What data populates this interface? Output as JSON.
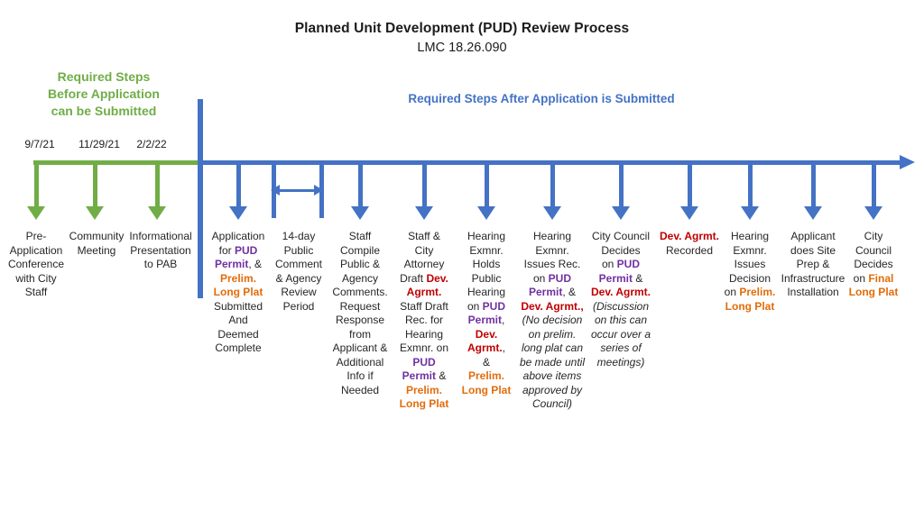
{
  "title": {
    "heading": "Planned Unit Development (PUD) Review Process",
    "code": "LMC 18.26.090"
  },
  "colors": {
    "green": "#70AD47",
    "blue": "#4472C4",
    "purple": "#7030A0",
    "red": "#C00000",
    "orange": "#E36C0A",
    "text": "#262626"
  },
  "before_section": {
    "heading_lines": [
      "Required Steps",
      "Before Application",
      "can be Submitted"
    ],
    "steps": [
      {
        "date": "9/7/21",
        "lines": [
          [
            {
              "t": "Pre-"
            }
          ],
          [
            {
              "t": "Application"
            }
          ],
          [
            {
              "t": "Conference"
            }
          ],
          [
            {
              "t": "with City"
            }
          ],
          [
            {
              "t": "Staff"
            }
          ]
        ]
      },
      {
        "date": "11/29/21",
        "lines": [
          [
            {
              "t": "Community"
            }
          ],
          [
            {
              "t": "Meeting"
            }
          ]
        ]
      },
      {
        "date": "2/2/22",
        "lines": [
          [
            {
              "t": "Informational"
            }
          ],
          [
            {
              "t": "Presentation"
            }
          ],
          [
            {
              "t": "to PAB"
            }
          ]
        ]
      }
    ]
  },
  "after_section": {
    "heading": "Required Steps After Application is Submitted",
    "steps": [
      {
        "lines": [
          [
            {
              "t": "Application"
            }
          ],
          [
            {
              "t": "for "
            },
            {
              "t": "PUD",
              "c": "purple"
            }
          ],
          [
            {
              "t": "Permit",
              "c": "purple"
            },
            {
              "t": ", &"
            }
          ],
          [
            {
              "t": "Prelim.",
              "c": "orange"
            }
          ],
          [
            {
              "t": "Long Plat",
              "c": "orange"
            }
          ],
          [
            {
              "t": "Submitted"
            }
          ],
          [
            {
              "t": "And"
            }
          ],
          [
            {
              "t": "Deemed"
            }
          ],
          [
            {
              "t": "Complete"
            }
          ]
        ]
      },
      {
        "marker": "range",
        "lines": [
          [
            {
              "t": "14-day"
            }
          ],
          [
            {
              "t": "Public"
            }
          ],
          [
            {
              "t": "Comment"
            }
          ],
          [
            {
              "t": "& Agency"
            }
          ],
          [
            {
              "t": "Review"
            }
          ],
          [
            {
              "t": "Period"
            }
          ]
        ]
      },
      {
        "lines": [
          [
            {
              "t": "Staff"
            }
          ],
          [
            {
              "t": "Compile"
            }
          ],
          [
            {
              "t": "Public &"
            }
          ],
          [
            {
              "t": "Agency"
            }
          ],
          [
            {
              "t": "Comments."
            }
          ],
          [
            {
              "t": "Request"
            }
          ],
          [
            {
              "t": "Response"
            }
          ],
          [
            {
              "t": "from"
            }
          ],
          [
            {
              "t": "Applicant &"
            }
          ],
          [
            {
              "t": "Additional"
            }
          ],
          [
            {
              "t": "Info if"
            }
          ],
          [
            {
              "t": "Needed"
            }
          ]
        ]
      },
      {
        "lines": [
          [
            {
              "t": "Staff &"
            }
          ],
          [
            {
              "t": "City"
            }
          ],
          [
            {
              "t": "Attorney"
            }
          ],
          [
            {
              "t": "Draft "
            },
            {
              "t": "Dev.",
              "c": "red"
            }
          ],
          [
            {
              "t": "Agrmt.",
              "c": "red"
            }
          ],
          [
            {
              "t": "Staff Draft"
            }
          ],
          [
            {
              "t": "Rec. for"
            }
          ],
          [
            {
              "t": "Hearing"
            }
          ],
          [
            {
              "t": "Exmnr. on"
            }
          ],
          [
            {
              "t": "PUD",
              "c": "purple"
            }
          ],
          [
            {
              "t": "Permit",
              "c": "purple"
            },
            {
              "t": " &"
            }
          ],
          [
            {
              "t": "Prelim.",
              "c": "orange"
            }
          ],
          [
            {
              "t": "Long Plat",
              "c": "orange"
            }
          ]
        ]
      },
      {
        "lines": [
          [
            {
              "t": "Hearing"
            }
          ],
          [
            {
              "t": "Exmnr."
            }
          ],
          [
            {
              "t": "Holds"
            }
          ],
          [
            {
              "t": "Public"
            }
          ],
          [
            {
              "t": "Hearing"
            }
          ],
          [
            {
              "t": "on "
            },
            {
              "t": "PUD",
              "c": "purple"
            }
          ],
          [
            {
              "t": "Permit",
              "c": "purple"
            },
            {
              "t": ","
            }
          ],
          [
            {
              "t": "Dev.",
              "c": "red"
            }
          ],
          [
            {
              "t": "Agrmt.",
              "c": "red"
            },
            {
              "t": ","
            }
          ],
          [
            {
              "t": "&"
            }
          ],
          [
            {
              "t": "Prelim.",
              "c": "orange"
            }
          ],
          [
            {
              "t": "Long Plat",
              "c": "orange"
            }
          ]
        ]
      },
      {
        "lines": [
          [
            {
              "t": "Hearing"
            }
          ],
          [
            {
              "t": "Exmnr."
            }
          ],
          [
            {
              "t": "Issues Rec."
            }
          ],
          [
            {
              "t": "on "
            },
            {
              "t": "PUD",
              "c": "purple"
            }
          ],
          [
            {
              "t": "Permit",
              "c": "purple"
            },
            {
              "t": ", &"
            }
          ],
          [
            {
              "t": "Dev. Agrmt.,",
              "c": "red"
            }
          ],
          [
            {
              "t": "(No decision",
              "c": "italic"
            }
          ],
          [
            {
              "t": "on prelim.",
              "c": "italic"
            }
          ],
          [
            {
              "t": "long plat can",
              "c": "italic"
            }
          ],
          [
            {
              "t": "be made until",
              "c": "italic"
            }
          ],
          [
            {
              "t": "above items",
              "c": "italic"
            }
          ],
          [
            {
              "t": "approved by",
              "c": "italic"
            }
          ],
          [
            {
              "t": "Council)",
              "c": "italic"
            }
          ]
        ]
      },
      {
        "lines": [
          [
            {
              "t": "City Council"
            }
          ],
          [
            {
              "t": "Decides"
            }
          ],
          [
            {
              "t": "on "
            },
            {
              "t": "PUD",
              "c": "purple"
            }
          ],
          [
            {
              "t": "Permit",
              "c": "purple"
            },
            {
              "t": " &"
            }
          ],
          [
            {
              "t": "Dev. Agrmt.",
              "c": "red"
            }
          ],
          [
            {
              "t": "(Discussion",
              "c": "italic"
            }
          ],
          [
            {
              "t": "on this can",
              "c": "italic"
            }
          ],
          [
            {
              "t": "occur over a",
              "c": "italic"
            }
          ],
          [
            {
              "t": "series of",
              "c": "italic"
            }
          ],
          [
            {
              "t": "meetings)",
              "c": "italic"
            }
          ]
        ]
      },
      {
        "lines": [
          [
            {
              "t": "Dev. Agrmt.",
              "c": "red"
            }
          ],
          [
            {
              "t": "Recorded"
            }
          ]
        ]
      },
      {
        "lines": [
          [
            {
              "t": "Hearing"
            }
          ],
          [
            {
              "t": "Exmnr."
            }
          ],
          [
            {
              "t": "Issues"
            }
          ],
          [
            {
              "t": "Decision"
            }
          ],
          [
            {
              "t": "on "
            },
            {
              "t": "Prelim.",
              "c": "orange"
            }
          ],
          [
            {
              "t": "Long Plat",
              "c": "orange"
            }
          ]
        ]
      },
      {
        "lines": [
          [
            {
              "t": "Applicant"
            }
          ],
          [
            {
              "t": "does Site"
            }
          ],
          [
            {
              "t": "Prep &"
            }
          ],
          [
            {
              "t": "Infrastructure"
            }
          ],
          [
            {
              "t": "Installation"
            }
          ]
        ]
      },
      {
        "lines": [
          [
            {
              "t": "City"
            }
          ],
          [
            {
              "t": "Council"
            }
          ],
          [
            {
              "t": "Decides"
            }
          ],
          [
            {
              "t": "on "
            },
            {
              "t": "Final",
              "c": "orange"
            }
          ],
          [
            {
              "t": "Long Plat",
              "c": "orange"
            }
          ]
        ]
      }
    ]
  }
}
